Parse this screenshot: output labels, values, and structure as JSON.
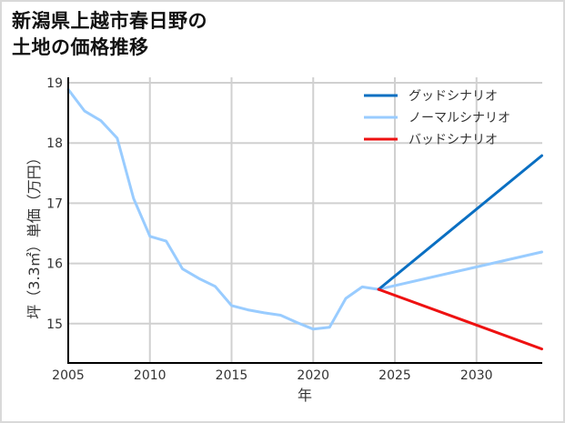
{
  "title": "新潟県上越市春日野の\n土地の価格推移",
  "chart_data": {
    "type": "line",
    "title": "新潟県上越市春日野の土地の価格推移",
    "xlabel": "年",
    "ylabel": "坪（3.3㎡）単価（万円）",
    "xlim": [
      2005,
      2034
    ],
    "ylim": [
      14.35,
      19.1
    ],
    "xticks": [
      2005,
      2010,
      2015,
      2020,
      2025,
      2030
    ],
    "yticks": [
      15,
      16,
      17,
      18,
      19
    ],
    "grid": true,
    "legend_position": "upper right",
    "series": [
      {
        "name": "グッドシナリオ",
        "color": "#0a6fc2",
        "x": [
          2024,
          2034
        ],
        "values": [
          15.57,
          17.79
        ]
      },
      {
        "name": "ノーマルシナリオ",
        "color": "#99ccff",
        "x": [
          2005,
          2006,
          2007,
          2008,
          2009,
          2010,
          2011,
          2012,
          2013,
          2014,
          2015,
          2016,
          2017,
          2018,
          2019,
          2020,
          2021,
          2022,
          2023,
          2024,
          2034
        ],
        "values": [
          18.89,
          18.53,
          18.37,
          18.08,
          17.08,
          16.45,
          16.37,
          15.91,
          15.75,
          15.62,
          15.3,
          15.23,
          15.18,
          15.14,
          15.02,
          14.91,
          14.94,
          15.42,
          15.61,
          15.57,
          16.19
        ]
      },
      {
        "name": "バッドシナリオ",
        "color": "#ee1111",
        "x": [
          2024,
          2034
        ],
        "values": [
          15.57,
          14.58
        ]
      }
    ]
  },
  "legend": {
    "items": [
      {
        "label": "グッドシナリオ",
        "color": "#0a6fc2"
      },
      {
        "label": "ノーマルシナリオ",
        "color": "#99ccff"
      },
      {
        "label": "バッドシナリオ",
        "color": "#ee1111"
      }
    ]
  },
  "axes": {
    "x_label": "年",
    "y_label": "坪（3.3㎡）単価（万円）",
    "x_ticks": [
      "2005",
      "2010",
      "2015",
      "2020",
      "2025",
      "2030"
    ],
    "y_ticks": [
      "19",
      "18",
      "17",
      "16",
      "15"
    ]
  }
}
